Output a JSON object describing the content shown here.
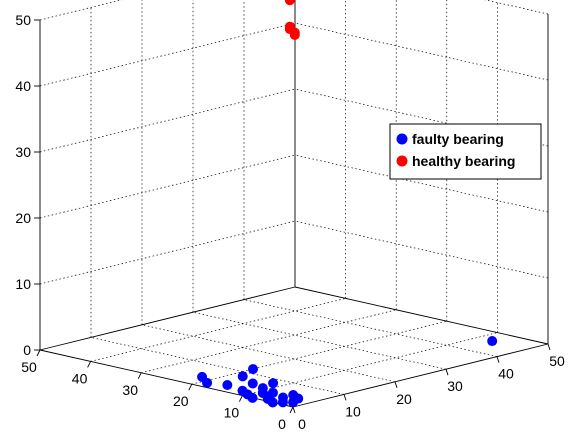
{
  "chart_data": {
    "type": "scatter",
    "title": "",
    "xlabel": "",
    "ylabel": "",
    "zlabel": "",
    "xlim": [
      0,
      50
    ],
    "ylim": [
      0,
      50
    ],
    "zlim": [
      0,
      50
    ],
    "x_ticks": [
      "0",
      "10",
      "20",
      "30",
      "40",
      "50"
    ],
    "y_ticks": [
      "0",
      "10",
      "20",
      "30",
      "40",
      "50"
    ],
    "z_ticks": [
      "0",
      "10",
      "20",
      "30",
      "40",
      "50"
    ],
    "grid": true,
    "legend_position": "right",
    "series": [
      {
        "name": "faulty bearing",
        "color": "#0000ff",
        "points": [
          {
            "x": 1,
            "y": 3,
            "z": 0
          },
          {
            "x": 2,
            "y": 2,
            "z": 0
          },
          {
            "x": 0,
            "y": 4,
            "z": 0
          },
          {
            "x": 3,
            "y": 5,
            "z": 0
          },
          {
            "x": 1,
            "y": 6,
            "z": 0
          },
          {
            "x": 4,
            "y": 3,
            "z": 0
          },
          {
            "x": 2,
            "y": 7,
            "z": 0
          },
          {
            "x": 5,
            "y": 5,
            "z": 0
          },
          {
            "x": 0,
            "y": 8,
            "z": 0
          },
          {
            "x": 3,
            "y": 9,
            "z": 0
          },
          {
            "x": 1,
            "y": 10,
            "z": 0
          },
          {
            "x": 4,
            "y": 8,
            "z": 0
          },
          {
            "x": 2,
            "y": 12,
            "z": 0
          },
          {
            "x": 5,
            "y": 11,
            "z": 0
          },
          {
            "x": 6,
            "y": 14,
            "z": 0
          },
          {
            "x": 3,
            "y": 16,
            "z": 0
          },
          {
            "x": 8,
            "y": 12,
            "z": 0
          },
          {
            "x": 2,
            "y": 19,
            "z": 0
          },
          {
            "x": 8,
            "y": 18,
            "z": 0
          },
          {
            "x": 4,
            "y": 22,
            "z": 0
          },
          {
            "x": 12,
            "y": 20,
            "z": 0
          },
          {
            "x": 46,
            "y": 7,
            "z": 0
          }
        ]
      },
      {
        "name": "healthy bearing",
        "color": "#ff0000",
        "points": [
          {
            "x": 48,
            "y": 49,
            "z": 40
          },
          {
            "x": 47,
            "y": 48,
            "z": 40
          },
          {
            "x": 46,
            "y": 46,
            "z": 40
          },
          {
            "x": 45,
            "y": 45,
            "z": 40
          },
          {
            "x": 50,
            "y": 49,
            "z": 48
          },
          {
            "x": 50,
            "y": 48,
            "z": 47
          },
          {
            "x": 49,
            "y": 50,
            "z": 46
          },
          {
            "x": 50,
            "y": 46,
            "z": 48
          },
          {
            "x": 48,
            "y": 49,
            "z": 45
          },
          {
            "x": 48,
            "y": 49,
            "z": 44
          },
          {
            "x": 50,
            "y": 47,
            "z": 45
          }
        ]
      }
    ]
  }
}
